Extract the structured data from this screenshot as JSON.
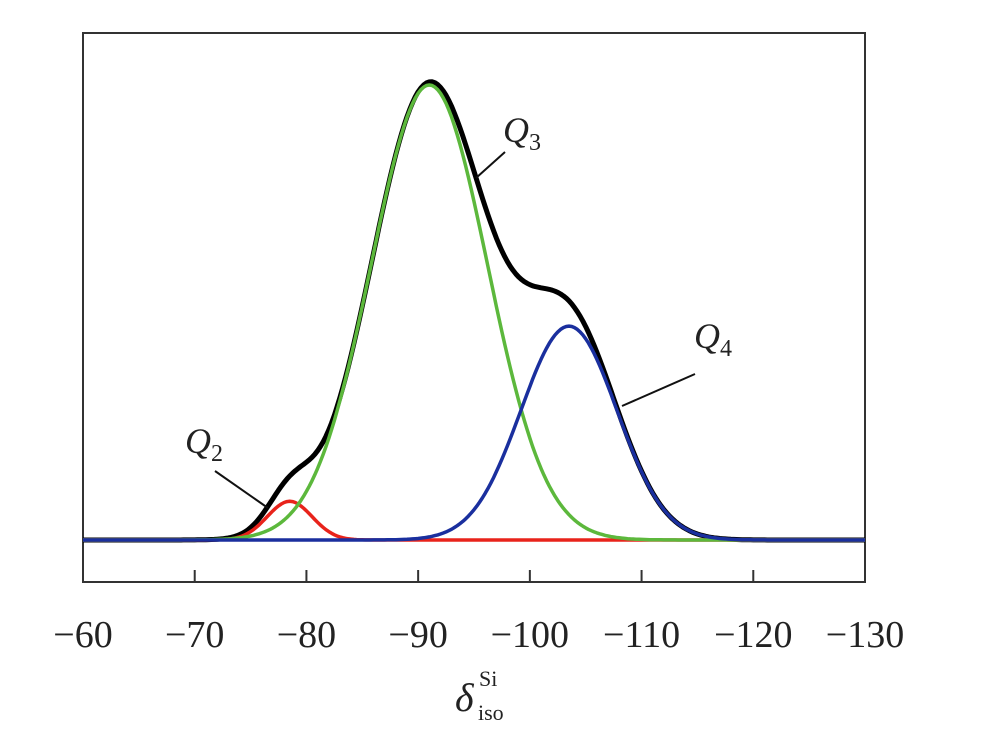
{
  "chart_data": {
    "type": "line",
    "xlabel": {
      "symbol": "δ",
      "superscript": "Si",
      "subscript": "iso"
    },
    "ylabel": "",
    "xlim": [
      -60,
      -130
    ],
    "x_reversed": true,
    "y_axis_ticks": false,
    "grid": false,
    "legend": "none",
    "x_ticks": [
      -60,
      -70,
      -80,
      -90,
      -100,
      -110,
      -120,
      -130
    ],
    "x_tick_labels": [
      "−60",
      "−70",
      "−80",
      "−90",
      "−100",
      "−110",
      "−120",
      "−130"
    ],
    "series": [
      {
        "name": "Q2",
        "label_letter": "Q",
        "label_subscript": "2",
        "color": "#e8231b",
        "shape": "gaussian",
        "center": -78.5,
        "height": 0.085,
        "sigma": 2.0,
        "role": "component"
      },
      {
        "name": "Q3",
        "label_letter": "Q",
        "label_subscript": "3",
        "color": "#5cb83c",
        "shape": "gaussian",
        "center": -91.0,
        "height": 1.0,
        "sigma": 5.2,
        "role": "component"
      },
      {
        "name": "Q4",
        "label_letter": "Q",
        "label_subscript": "4",
        "color": "#1a2f9e",
        "shape": "gaussian",
        "center": -103.5,
        "height": 0.47,
        "sigma": 4.3,
        "role": "component"
      },
      {
        "name": "",
        "color": "#000000",
        "role": "sum",
        "shape": "sum of components"
      }
    ]
  }
}
